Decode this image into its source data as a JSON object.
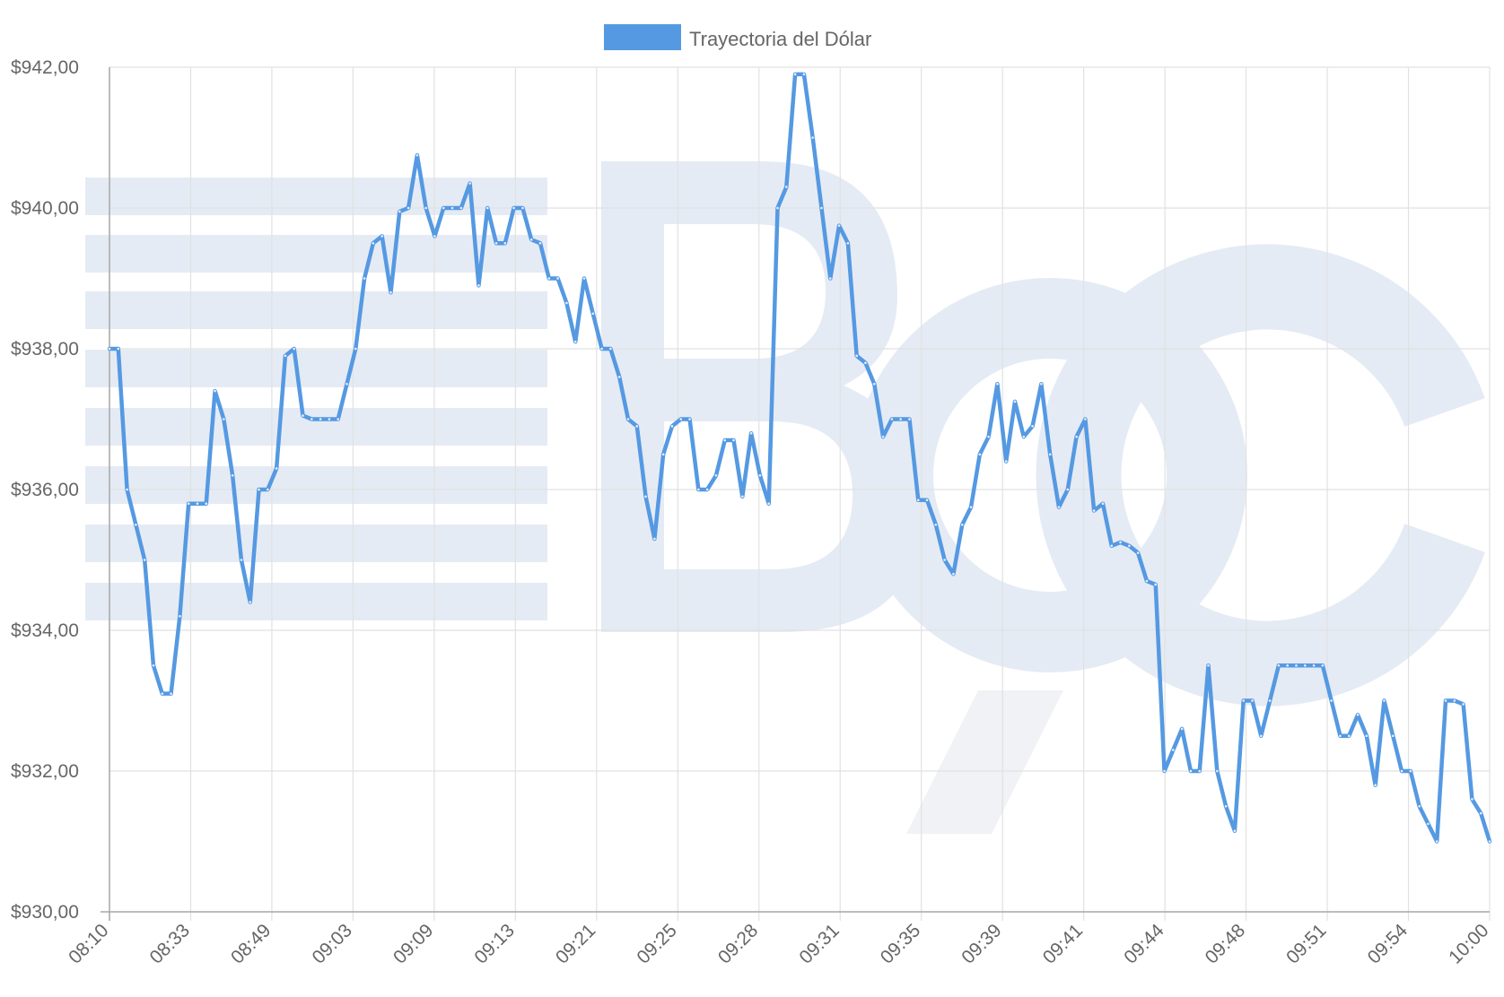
{
  "colors": {
    "series": "#5599e2",
    "grid": "#e1e1e1",
    "axis": "#a8a8a8",
    "text": "#666666"
  },
  "chart_data": {
    "type": "line",
    "title": "",
    "xlabel": "",
    "ylabel": "",
    "ylim": [
      930,
      942
    ],
    "y_ticks": [
      942,
      940,
      938,
      936,
      934,
      932,
      930
    ],
    "y_tick_labels": [
      "$942,00",
      "$940,00",
      "$938,00",
      "$936,00",
      "$934,00",
      "$932,00",
      "$930,00"
    ],
    "x_tick_labels": [
      "08:10",
      "08:33",
      "08:49",
      "09:03",
      "09:09",
      "09:13",
      "09:21",
      "09:25",
      "09:28",
      "09:31",
      "09:35",
      "09:39",
      "09:41",
      "09:44",
      "09:48",
      "09:51",
      "09:54",
      "10:00"
    ],
    "grid": true,
    "legend": {
      "position": "top",
      "entries": [
        "Trayectoria del Dólar"
      ]
    },
    "series": [
      {
        "name": "Trayectoria del Dólar",
        "color": "#5599e2",
        "values": [
          938.0,
          938.0,
          936.0,
          935.5,
          935.0,
          933.5,
          933.1,
          933.1,
          934.2,
          935.8,
          935.8,
          935.8,
          937.4,
          937.0,
          936.2,
          935.0,
          934.4,
          936.0,
          936.0,
          936.3,
          937.9,
          938.0,
          937.05,
          937.0,
          937.0,
          937.0,
          937.0,
          937.5,
          938.0,
          939.0,
          939.5,
          939.6,
          938.8,
          939.95,
          940.0,
          940.75,
          940.0,
          939.6,
          940.0,
          940.0,
          940.0,
          940.35,
          938.9,
          940.0,
          939.5,
          939.5,
          940.0,
          940.0,
          939.55,
          939.5,
          939.0,
          939.0,
          938.65,
          938.1,
          939.0,
          938.5,
          938.0,
          938.0,
          937.6,
          937.0,
          936.9,
          935.9,
          935.3,
          936.5,
          936.9,
          937.0,
          937.0,
          936.0,
          936.0,
          936.2,
          936.7,
          936.7,
          935.9,
          936.8,
          936.2,
          935.8,
          940.0,
          940.3,
          941.9,
          941.9,
          941.0,
          940.0,
          939.0,
          939.75,
          939.5,
          937.9,
          937.8,
          937.5,
          936.75,
          937.0,
          937.0,
          937.0,
          935.85,
          935.85,
          935.5,
          935.0,
          934.8,
          935.5,
          935.75,
          936.5,
          936.75,
          937.5,
          936.4,
          937.25,
          936.75,
          936.9,
          937.5,
          936.5,
          935.75,
          936.0,
          936.75,
          937.0,
          935.7,
          935.8,
          935.2,
          935.25,
          935.2,
          935.1,
          934.7,
          934.65,
          932.0,
          932.3,
          932.6,
          932.0,
          932.0,
          933.5,
          932.0,
          931.5,
          931.15,
          933.0,
          933.0,
          932.5,
          933.0,
          933.5,
          933.5,
          933.5,
          933.5,
          933.5,
          933.5,
          933.0,
          932.5,
          932.5,
          932.8,
          932.5,
          931.8,
          933.0,
          932.5,
          932.0,
          932.0,
          931.5,
          931.25,
          931.0,
          933.0,
          933.0,
          932.95,
          931.6,
          931.4,
          931.0
        ]
      }
    ]
  }
}
